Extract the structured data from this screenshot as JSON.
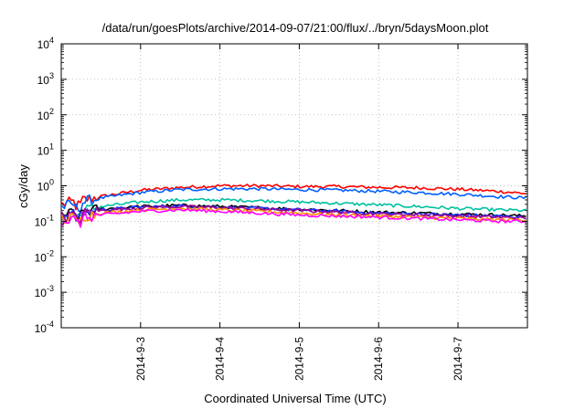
{
  "chart_data": {
    "type": "line",
    "title": "/data/run/goesPlots/archive/2014-09-07/21:00/flux/../bryn/5daysMoon.plot",
    "xlabel": "Coordinated Universal Time (UTC)",
    "ylabel": "cGy/day",
    "yscale": "log",
    "ylim": [
      0.0001,
      10000
    ],
    "xlim": [
      "2014-09-02 00:00",
      "2014-09-07 21:00"
    ],
    "grid": true,
    "legend": "none",
    "y_ticks": [
      {
        "base": "10",
        "exp": "-4",
        "value": 0.0001
      },
      {
        "base": "10",
        "exp": "-3",
        "value": 0.001
      },
      {
        "base": "10",
        "exp": "-2",
        "value": 0.01
      },
      {
        "base": "10",
        "exp": "-1",
        "value": 0.1
      },
      {
        "base": "10",
        "exp": "0",
        "value": 1
      },
      {
        "base": "10",
        "exp": "1",
        "value": 10
      },
      {
        "base": "10",
        "exp": "2",
        "value": 100
      },
      {
        "base": "10",
        "exp": "3",
        "value": 1000
      },
      {
        "base": "10",
        "exp": "4",
        "value": 10000
      }
    ],
    "x_ticks": [
      {
        "label": "2014-9-3",
        "value": "2014-09-03 00:00"
      },
      {
        "label": "2014-9-4",
        "value": "2014-09-04 00:00"
      },
      {
        "label": "2014-9-5",
        "value": "2014-09-05 00:00"
      },
      {
        "label": "2014-9-6",
        "value": "2014-09-06 00:00"
      },
      {
        "label": "2014-9-7",
        "value": "2014-09-07 00:00"
      }
    ],
    "x": [
      "2014-09-02 00:00",
      "2014-09-02 12:00",
      "2014-09-03 00:00",
      "2014-09-03 12:00",
      "2014-09-04 00:00",
      "2014-09-04 12:00",
      "2014-09-05 00:00",
      "2014-09-05 12:00",
      "2014-09-06 00:00",
      "2014-09-06 12:00",
      "2014-09-07 00:00",
      "2014-09-07 12:00",
      "2014-09-07 21:00"
    ],
    "series": [
      {
        "color": "#ff0000",
        "values": [
          0.3,
          0.5,
          0.75,
          0.9,
          1.0,
          1.0,
          0.95,
          0.95,
          0.9,
          0.88,
          0.8,
          0.7,
          0.6
        ]
      },
      {
        "color": "#0060ff",
        "values": [
          0.25,
          0.45,
          0.65,
          0.78,
          0.82,
          0.82,
          0.78,
          0.75,
          0.7,
          0.65,
          0.58,
          0.5,
          0.45
        ]
      },
      {
        "color": "#00c0a0",
        "values": [
          0.15,
          0.26,
          0.35,
          0.4,
          0.4,
          0.38,
          0.35,
          0.32,
          0.29,
          0.26,
          0.23,
          0.21,
          0.2
        ]
      },
      {
        "color": "#000000",
        "values": [
          0.15,
          0.22,
          0.26,
          0.28,
          0.26,
          0.24,
          0.22,
          0.2,
          0.18,
          0.17,
          0.16,
          0.15,
          0.14
        ]
      },
      {
        "color": "#2030ff",
        "values": [
          0.14,
          0.21,
          0.25,
          0.27,
          0.25,
          0.23,
          0.21,
          0.19,
          0.17,
          0.16,
          0.15,
          0.14,
          0.13
        ]
      },
      {
        "color": "#a00090",
        "values": [
          0.13,
          0.2,
          0.24,
          0.26,
          0.24,
          0.22,
          0.2,
          0.18,
          0.16,
          0.15,
          0.14,
          0.13,
          0.12
        ]
      },
      {
        "color": "#ff9000",
        "values": [
          0.11,
          0.17,
          0.21,
          0.23,
          0.21,
          0.19,
          0.17,
          0.15,
          0.14,
          0.13,
          0.12,
          0.11,
          0.11
        ]
      },
      {
        "color": "#ff00ff",
        "values": [
          0.1,
          0.15,
          0.19,
          0.21,
          0.19,
          0.17,
          0.15,
          0.14,
          0.13,
          0.12,
          0.11,
          0.1,
          0.1
        ]
      }
    ]
  }
}
